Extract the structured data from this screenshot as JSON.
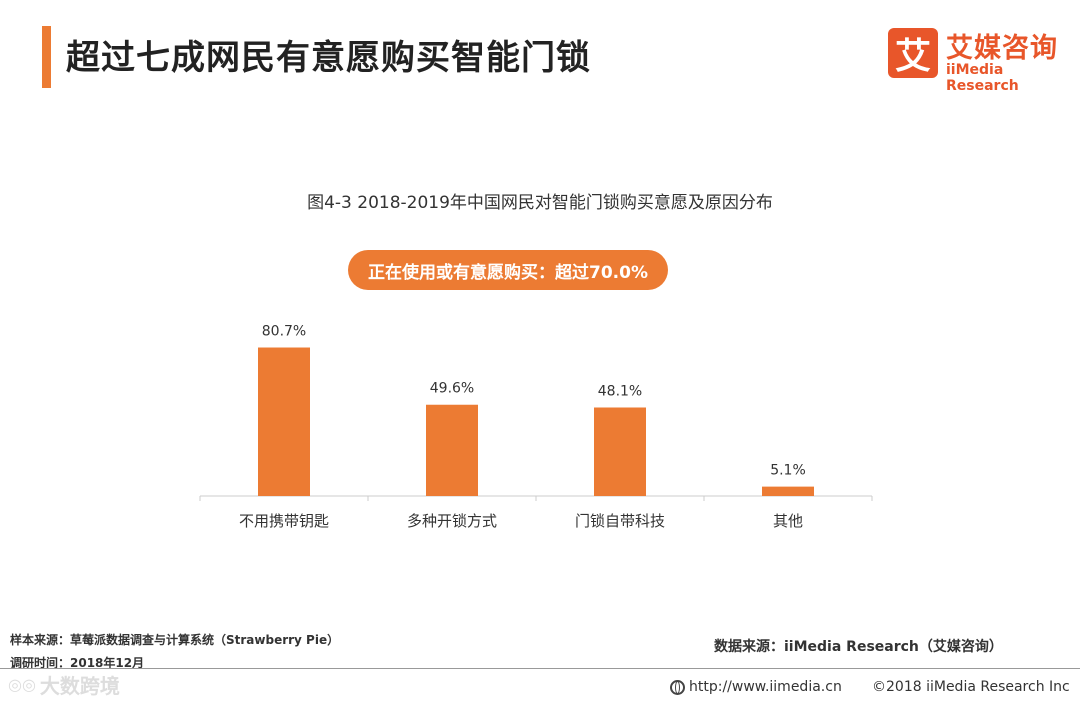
{
  "header": {
    "title": "超过七成网民有意愿购买智能门锁",
    "logo_mark": "艾",
    "logo_cn": "艾媒咨询",
    "logo_en": "iiMedia Research"
  },
  "highlight": "正在使用或有意愿购买：超过70.0%",
  "footer": {
    "sample": "样本来源：草莓派数据调查与计算系统（Strawberry Pie）",
    "survey_time": "调研时间：2018年12月",
    "source": "数据来源：iiMedia Research（艾媒咨询）",
    "url": "http://www.iimedia.cn",
    "copyright": "©2018  iiMedia Research  Inc",
    "watermark": "大数跨境"
  },
  "colors": {
    "accent": "#EC7B33",
    "logo": "#E8562A",
    "axis": "#CCCCCC"
  },
  "chart_data": {
    "type": "bar",
    "title": "图4-3 2018-2019年中国网民对智能门锁购买意愿及原因分布",
    "categories": [
      "不用携带钥匙",
      "多种开锁方式",
      "门锁自带科技",
      "其他"
    ],
    "values": [
      80.7,
      49.6,
      48.1,
      5.1
    ],
    "value_labels": [
      "80.7%",
      "49.6%",
      "48.1%",
      "5.1%"
    ],
    "ylim": [
      0,
      100
    ],
    "grid": false,
    "legend": "none"
  }
}
